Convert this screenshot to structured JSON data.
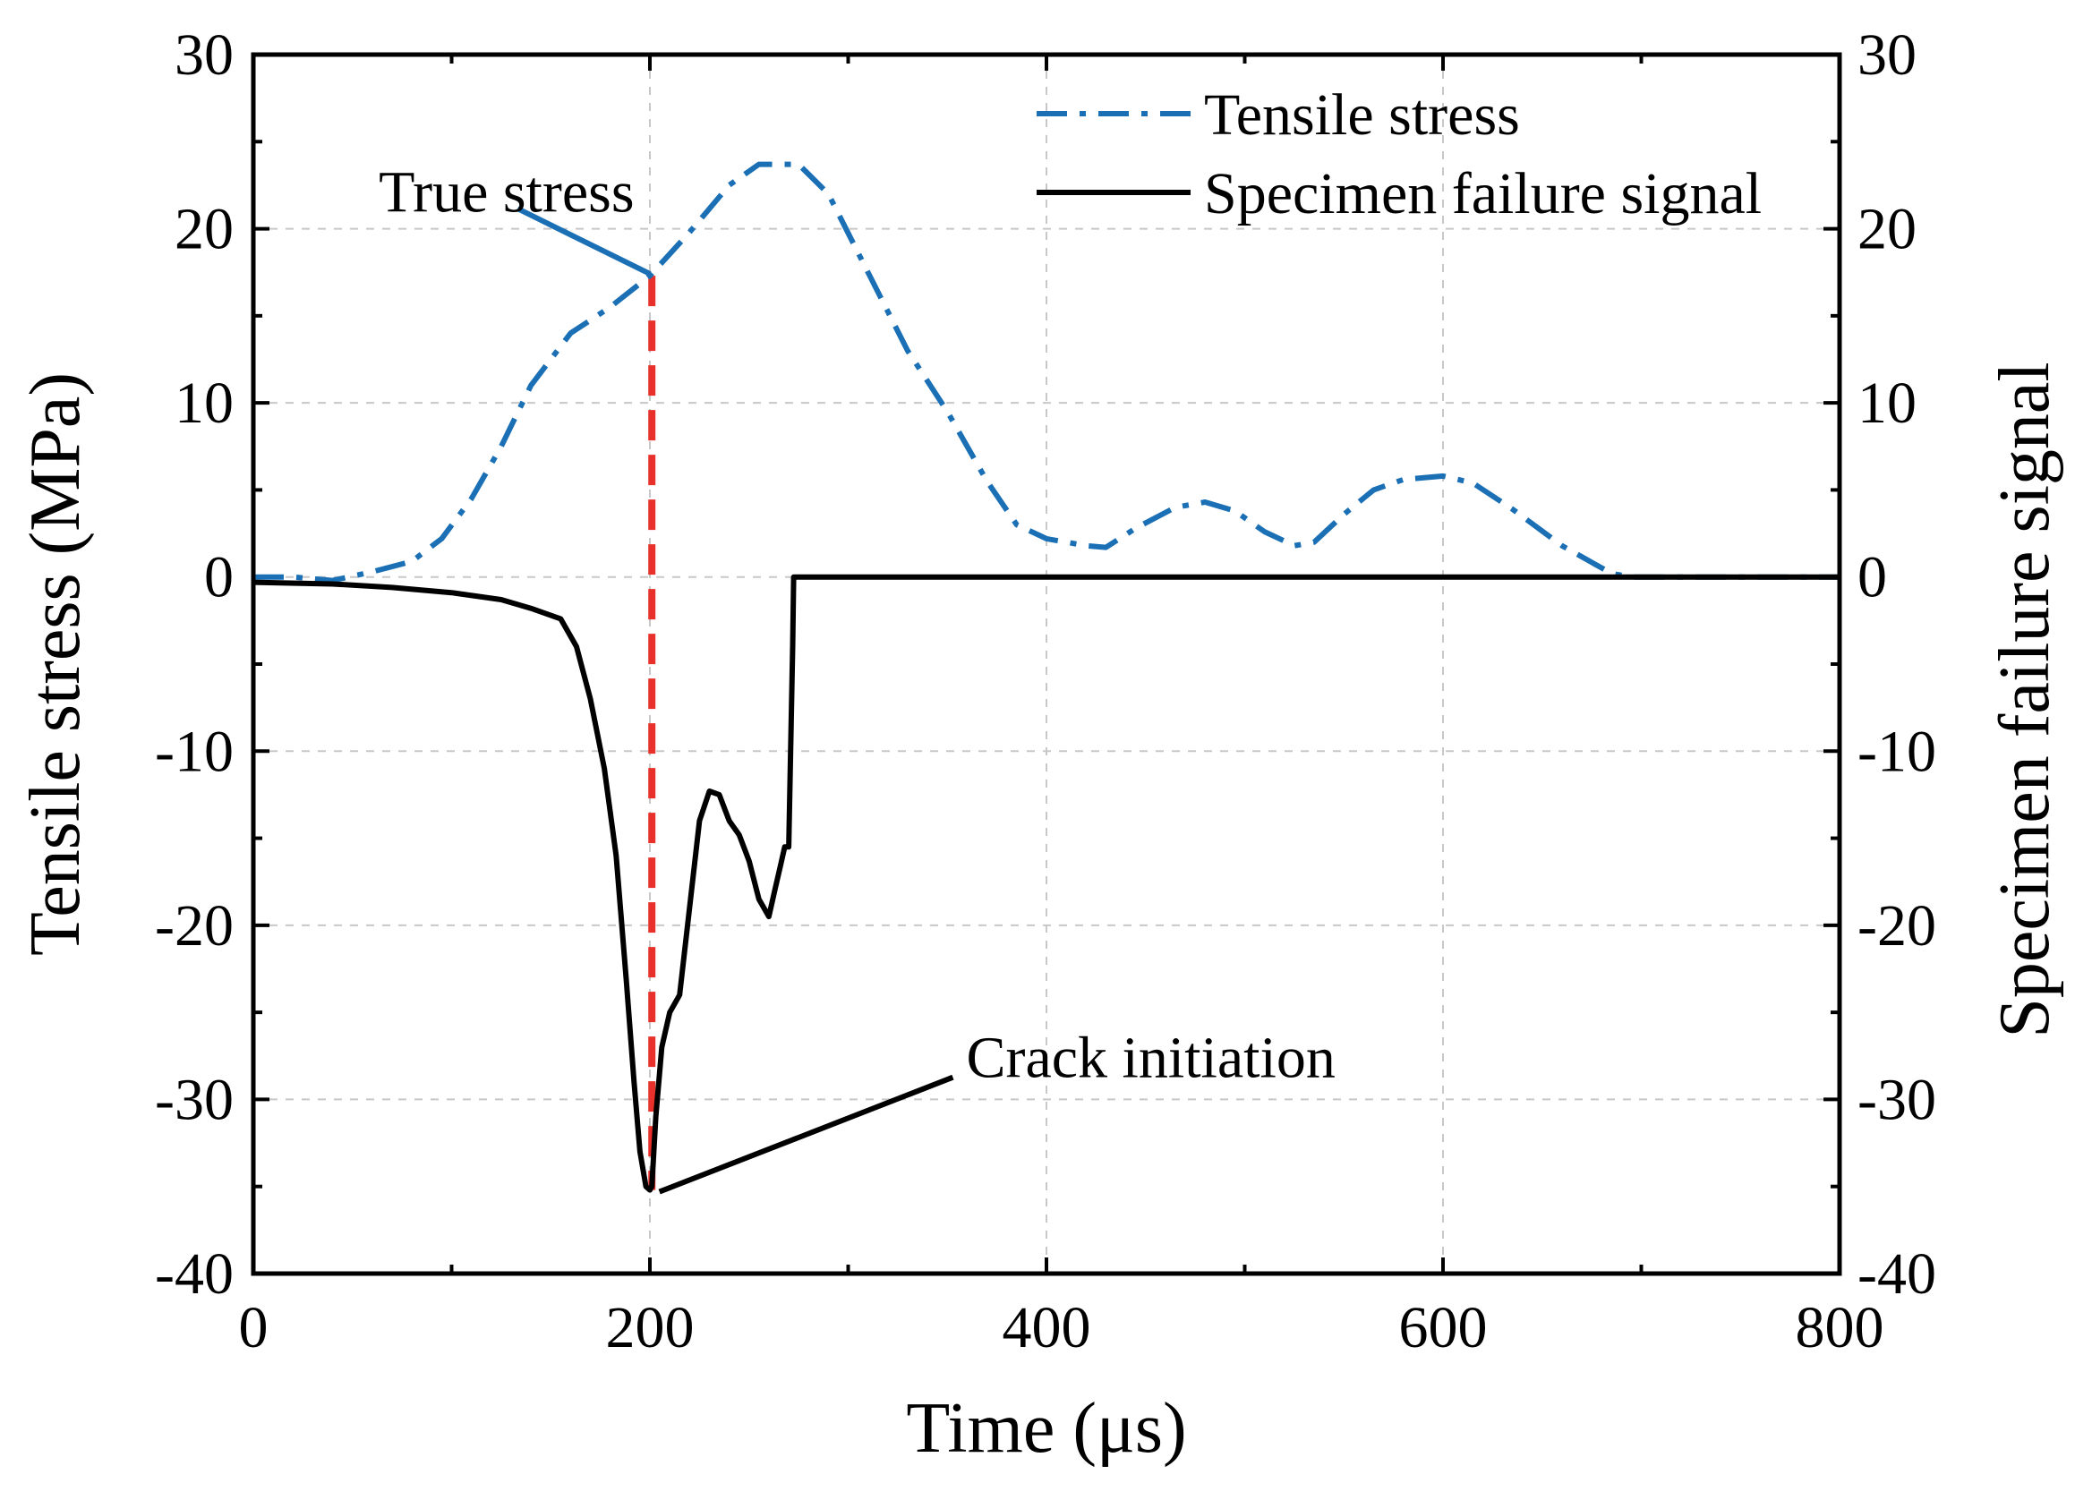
{
  "chart_data": {
    "type": "line",
    "xlabel": "Time (μs)",
    "ylabel": "Tensile stress (MPa)",
    "y2label": "Specimen failure signal",
    "xlim": [
      0,
      800
    ],
    "ylim": [
      -40,
      30
    ],
    "y2lim": [
      -40,
      30
    ],
    "grid": true,
    "legend_position": "top-right",
    "x_ticks": [
      0,
      200,
      400,
      600,
      800
    ],
    "x_tick_labels": [
      "0",
      "200",
      "400",
      "600",
      "800"
    ],
    "y_ticks": [
      30,
      20,
      10,
      0,
      -10,
      -20,
      -30,
      -40
    ],
    "y_tick_labels": [
      "30",
      "20",
      "10",
      "0",
      "-10",
      "-20",
      "-30",
      "-40"
    ],
    "y2_tick_labels": [
      "30",
      "20",
      "10",
      "0",
      "-10",
      "-20",
      "-30",
      "-40"
    ],
    "series": [
      {
        "name": "Tensile stress",
        "color": "#1a6fb5",
        "line_style": "dash-dot",
        "x": [
          0,
          20,
          40,
          60,
          80,
          95,
          110,
          125,
          140,
          160,
          180,
          200,
          220,
          240,
          255,
          275,
          290,
          310,
          330,
          350,
          370,
          385,
          400,
          420,
          430,
          445,
          465,
          480,
          495,
          510,
          525,
          535,
          550,
          565,
          580,
          600,
          615,
          635,
          660,
          685,
          695,
          720,
          760,
          800
        ],
        "y": [
          0,
          0,
          -0.2,
          0.3,
          0.9,
          2.2,
          4.5,
          7.5,
          11.0,
          14.0,
          15.5,
          17.3,
          19.8,
          22.5,
          23.7,
          23.7,
          22.0,
          17.5,
          13.0,
          9.5,
          5.5,
          3.0,
          2.2,
          1.8,
          1.7,
          2.8,
          4.0,
          4.3,
          3.8,
          2.6,
          1.8,
          2.0,
          3.6,
          5.0,
          5.6,
          5.8,
          5.4,
          3.9,
          1.8,
          0.2,
          0,
          0,
          0,
          0
        ]
      },
      {
        "name": "Specimen failure signal",
        "color": "#000000",
        "line_style": "solid",
        "x": [
          0,
          40,
          70,
          100,
          125,
          140,
          155,
          163,
          170,
          177,
          183,
          188,
          192,
          195,
          198,
          200,
          201,
          203,
          206,
          210,
          215,
          220,
          225,
          230,
          235,
          240,
          245,
          250,
          255,
          260,
          263,
          266,
          268,
          270,
          272,
          272.5,
          280,
          400,
          600,
          800
        ],
        "y": [
          -0.3,
          -0.4,
          -0.6,
          -0.9,
          -1.3,
          -1.8,
          -2.4,
          -4.0,
          -7.0,
          -11.0,
          -16.0,
          -23.0,
          -29.0,
          -33.0,
          -35.0,
          -35.2,
          -35.0,
          -31.0,
          -27.0,
          -25.0,
          -24.0,
          -19.0,
          -14.0,
          -12.3,
          -12.5,
          -14.0,
          -14.8,
          -16.3,
          -18.5,
          -19.5,
          -18.0,
          -16.5,
          -15.5,
          -15.5,
          -4.0,
          0,
          0,
          0,
          0,
          0
        ]
      }
    ],
    "annotations": [
      {
        "text": "True stress",
        "point": [
          201,
          17.3
        ],
        "label_at": [
          140,
          22.0
        ]
      },
      {
        "text": "Crack initiation",
        "point": [
          203,
          -35.2
        ],
        "label_at": [
          337,
          -29.5
        ]
      }
    ],
    "marker_line": {
      "x": 201,
      "y_from": 17.3,
      "y_to": -35.2,
      "color": "#e8312b"
    }
  }
}
